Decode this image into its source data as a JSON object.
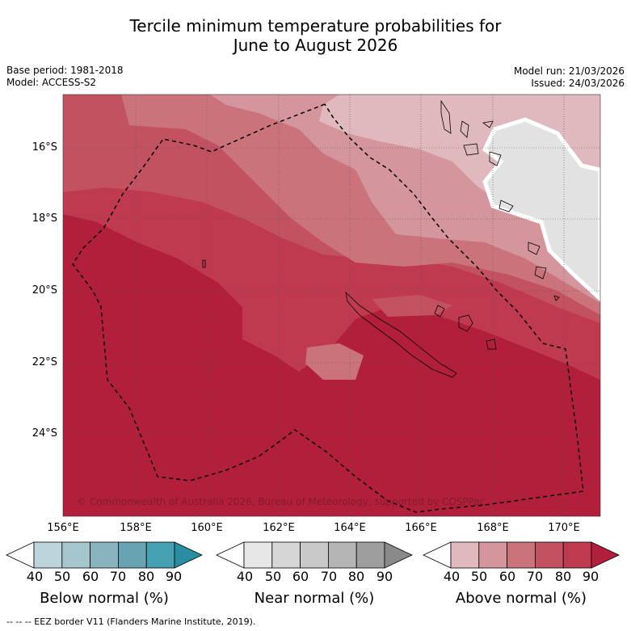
{
  "title_line1": "Tercile minimum temperature probabilities for",
  "title_line2": "June to August 2026",
  "meta": {
    "base_period": "Base period: 1981-2018",
    "model": "Model: ACCESS-S2",
    "model_run": "Model run: 21/03/2026",
    "issued": "Issued: 24/03/2026"
  },
  "latitude_labels": [
    "16°S",
    "18°S",
    "20°S",
    "22°S",
    "24°S"
  ],
  "longitude_labels": [
    "156°E",
    "158°E",
    "160°E",
    "162°E",
    "164°E",
    "166°E",
    "168°E",
    "170°E"
  ],
  "copyright": "© Commonwealth of Australia 2026, Bureau of Meteorology, supported by COSPPac",
  "colorbars": [
    {
      "label": "Below normal (%)",
      "ticks": [
        "40",
        "50",
        "60",
        "70",
        "80",
        "90"
      ],
      "colors": [
        "#ffffff",
        "#bcd4da",
        "#a5c6cc",
        "#88b4be",
        "#68a3b1",
        "#45a0b1",
        "#2a8ea3"
      ]
    },
    {
      "label": "Near normal (%)",
      "ticks": [
        "40",
        "50",
        "60",
        "70",
        "80",
        "90"
      ],
      "colors": [
        "#ffffff",
        "#e6e6e6",
        "#d6d6d6",
        "#c8c8c8",
        "#b4b4b4",
        "#9e9e9e",
        "#8a8a8a"
      ]
    },
    {
      "label": "Above normal (%)",
      "ticks": [
        "40",
        "50",
        "60",
        "70",
        "80",
        "90"
      ],
      "colors": [
        "#ffffff",
        "#e0b9bf",
        "#d4959c",
        "#ca737b",
        "#c25260",
        "#bf394f",
        "#b21f3b"
      ]
    }
  ],
  "footnote": "--  --  -- EEZ border V11 (Flanders Marine Institute, 2019)."
}
